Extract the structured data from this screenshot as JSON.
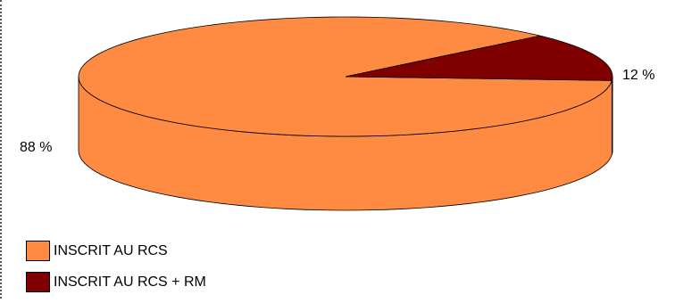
{
  "chart_data": {
    "type": "pie",
    "style": "3d",
    "title": "",
    "series": [
      {
        "name": "",
        "values": [
          88,
          12
        ]
      }
    ],
    "categories": [
      "INSCRIT AU RCS",
      "INSCRIT AU RCS + RM"
    ],
    "values": [
      88,
      12
    ],
    "data_labels": [
      "88 %",
      "12 %"
    ],
    "colors": [
      "#ff8a42",
      "#800000"
    ],
    "legend": {
      "placement": "bottom-left",
      "items": [
        "INSCRIT AU RCS",
        "INSCRIT AU RCS + RM"
      ]
    }
  }
}
